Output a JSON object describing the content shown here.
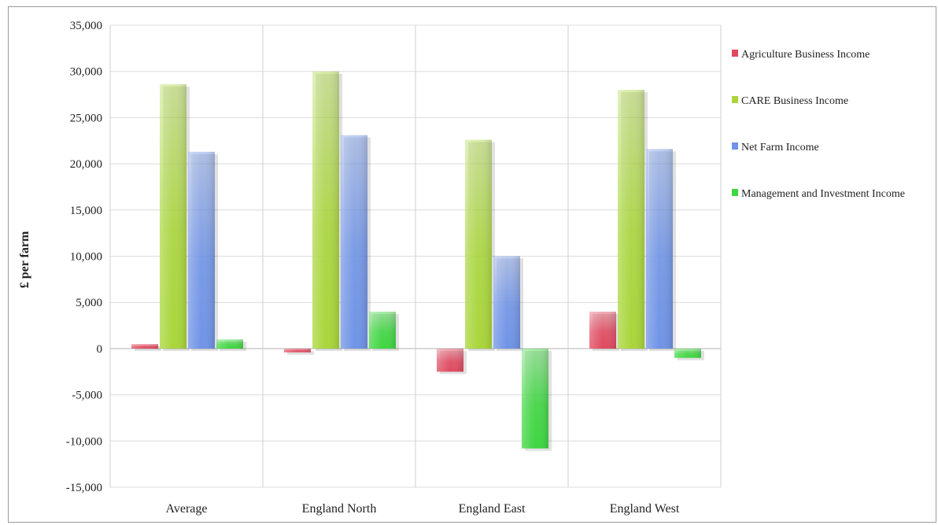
{
  "chart_data": {
    "type": "bar",
    "title": "",
    "xlabel": "",
    "ylabel": "£ per farm",
    "ylim": [
      -15000,
      35000
    ],
    "ytick_step": 5000,
    "yticks": [
      "-15,000",
      "-10,000",
      "-5,000",
      "0",
      "5,000",
      "10,000",
      "15,000",
      "20,000",
      "25,000",
      "30,000",
      "35,000"
    ],
    "grid": true,
    "legend": "right",
    "categories": [
      "Average",
      "England North",
      "England East",
      "England West"
    ],
    "series": [
      {
        "name": "Agriculture Business Income",
        "color": "#e0485e",
        "values": [
          500,
          -400,
          -2500,
          4000
        ]
      },
      {
        "name": "CARE Business Income",
        "color": "#a9d63a",
        "values": [
          28600,
          30000,
          22600,
          28000
        ]
      },
      {
        "name": "Net Farm Income",
        "color": "#6f93e6",
        "values": [
          21300,
          23100,
          10000,
          21600
        ]
      },
      {
        "name": "Management and Investment Income",
        "color": "#3ed640",
        "values": [
          1000,
          4000,
          -10800,
          -1000
        ]
      }
    ]
  }
}
